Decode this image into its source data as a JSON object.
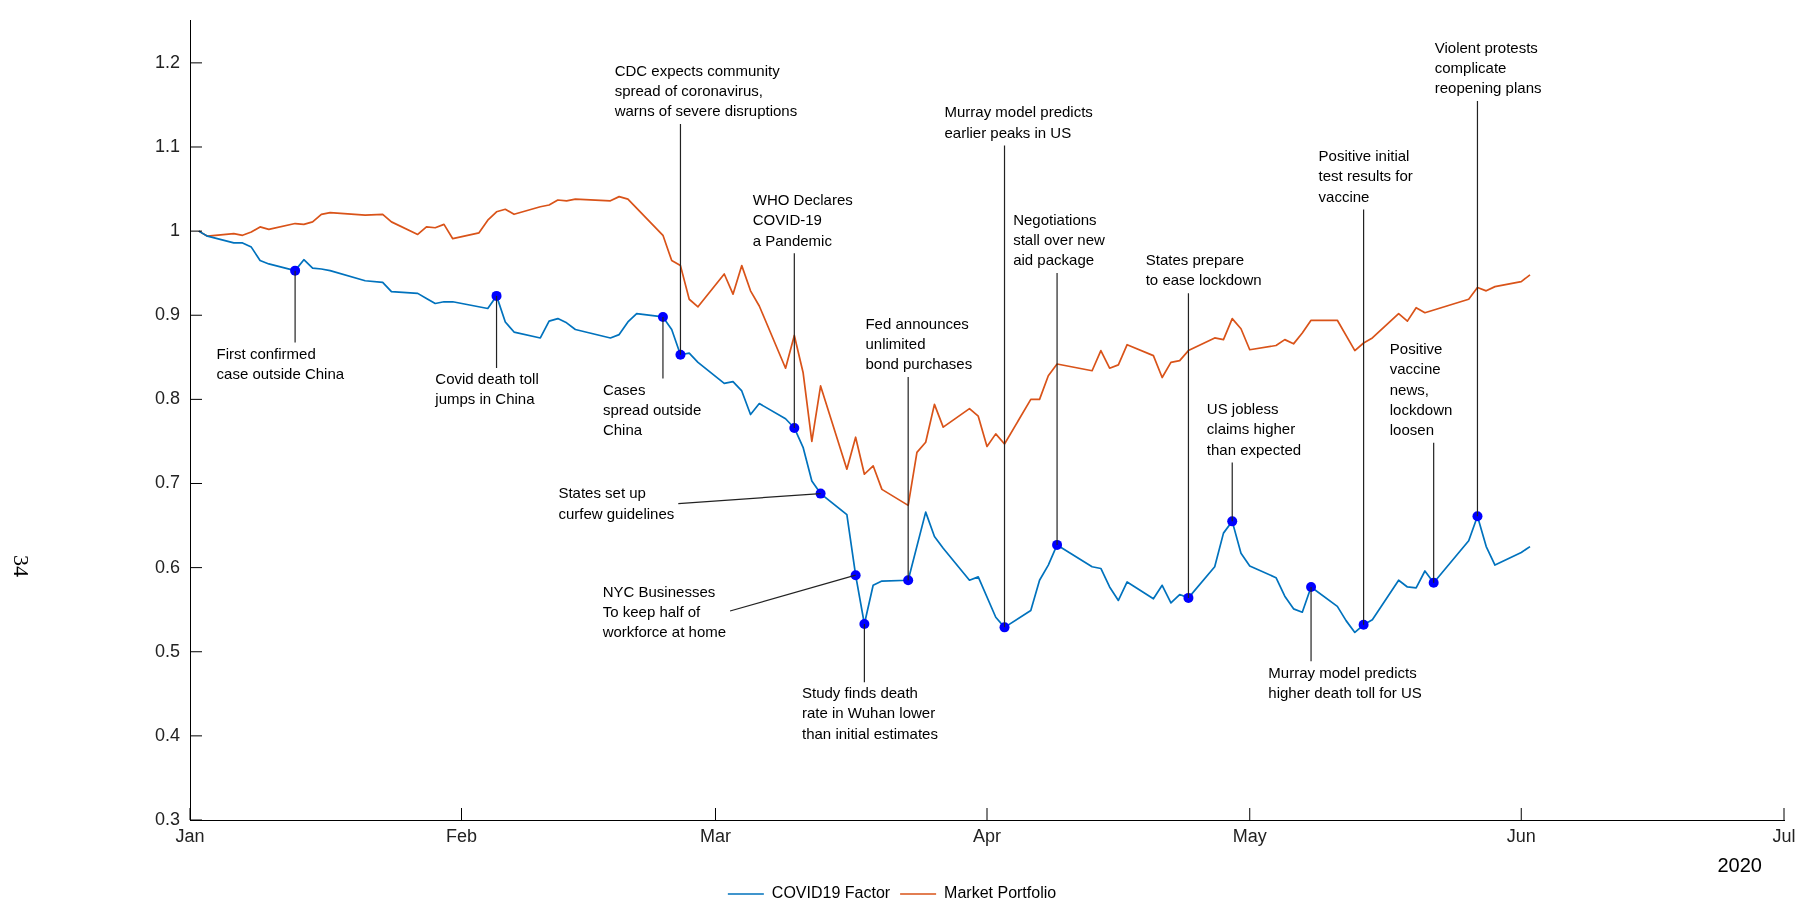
{
  "chart_data": {
    "type": "line",
    "xlim": [
      "2020-01-01",
      "2020-07-01"
    ],
    "xticks": [
      {
        "value": "2020-01-01",
        "label": "Jan"
      },
      {
        "value": "2020-02-01",
        "label": "Feb"
      },
      {
        "value": "2020-03-01",
        "label": "Mar"
      },
      {
        "value": "2020-04-01",
        "label": "Apr"
      },
      {
        "value": "2020-05-01",
        "label": "May"
      },
      {
        "value": "2020-06-01",
        "label": "Jun"
      },
      {
        "value": "2020-07-01",
        "label": "Jul"
      }
    ],
    "ylim": [
      0.3,
      1.25
    ],
    "yticks": [
      0.3,
      0.4,
      0.5,
      0.6,
      0.7,
      0.8,
      0.9,
      1,
      1.1,
      1.2
    ],
    "legend": "bottom",
    "series": [
      {
        "name": "COVID19 Factor",
        "color": "#0072bd",
        "x": [
          "2020-01-02",
          "2020-01-03",
          "2020-01-06",
          "2020-01-07",
          "2020-01-08",
          "2020-01-09",
          "2020-01-10",
          "2020-01-13",
          "2020-01-14",
          "2020-01-15",
          "2020-01-16",
          "2020-01-17",
          "2020-01-21",
          "2020-01-23",
          "2020-01-24",
          "2020-01-27",
          "2020-01-28",
          "2020-01-29",
          "2020-01-30",
          "2020-01-31",
          "2020-02-04",
          "2020-02-05",
          "2020-02-06",
          "2020-02-07",
          "2020-02-10",
          "2020-02-11",
          "2020-02-12",
          "2020-02-13",
          "2020-02-14",
          "2020-02-18",
          "2020-02-19",
          "2020-02-20",
          "2020-02-21",
          "2020-02-24",
          "2020-02-25",
          "2020-02-26",
          "2020-02-27",
          "2020-02-28",
          "2020-03-02",
          "2020-03-03",
          "2020-03-04",
          "2020-03-05",
          "2020-03-06",
          "2020-03-09",
          "2020-03-10",
          "2020-03-11",
          "2020-03-12",
          "2020-03-13",
          "2020-03-16",
          "2020-03-17",
          "2020-03-18",
          "2020-03-19",
          "2020-03-20",
          "2020-03-23",
          "2020-03-25",
          "2020-03-26",
          "2020-03-27",
          "2020-03-30",
          "2020-03-31",
          "2020-04-02",
          "2020-04-03",
          "2020-04-06",
          "2020-04-07",
          "2020-04-08",
          "2020-04-09",
          "2020-04-13",
          "2020-04-14",
          "2020-04-15",
          "2020-04-16",
          "2020-04-17",
          "2020-04-20",
          "2020-04-21",
          "2020-04-22",
          "2020-04-23",
          "2020-04-24",
          "2020-04-27",
          "2020-04-28",
          "2020-04-29",
          "2020-04-30",
          "2020-05-01",
          "2020-05-04",
          "2020-05-05",
          "2020-05-06",
          "2020-05-07",
          "2020-05-08",
          "2020-05-11",
          "2020-05-12",
          "2020-05-13",
          "2020-05-14",
          "2020-05-15",
          "2020-05-18",
          "2020-05-19",
          "2020-05-20",
          "2020-05-21",
          "2020-05-22",
          "2020-05-26",
          "2020-05-27",
          "2020-05-28",
          "2020-05-29",
          "2020-06-01",
          "2020-06-02"
        ],
        "values": [
          1.0,
          0.994,
          0.986,
          0.986,
          0.981,
          0.965,
          0.961,
          0.953,
          0.966,
          0.956,
          0.955,
          0.953,
          0.941,
          0.939,
          0.928,
          0.926,
          0.92,
          0.914,
          0.916,
          0.916,
          0.908,
          0.923,
          0.892,
          0.88,
          0.873,
          0.893,
          0.896,
          0.891,
          0.883,
          0.873,
          0.877,
          0.892,
          0.902,
          0.898,
          0.883,
          0.853,
          0.855,
          0.844,
          0.819,
          0.821,
          0.81,
          0.782,
          0.795,
          0.777,
          0.766,
          0.743,
          0.703,
          0.688,
          0.663,
          0.591,
          0.533,
          0.579,
          0.584,
          0.585,
          0.666,
          0.637,
          0.623,
          0.585,
          0.589,
          0.541,
          0.529,
          0.549,
          0.585,
          0.603,
          0.627,
          0.601,
          0.599,
          0.577,
          0.561,
          0.583,
          0.563,
          0.579,
          0.558,
          0.568,
          0.564,
          0.601,
          0.641,
          0.655,
          0.617,
          0.602,
          0.588,
          0.566,
          0.551,
          0.547,
          0.577,
          0.554,
          0.537,
          0.523,
          0.532,
          0.538,
          0.585,
          0.577,
          0.576,
          0.596,
          0.582,
          0.632,
          0.661,
          0.625,
          0.603,
          0.618,
          0.625
        ]
      },
      {
        "name": "Market Portfolio",
        "color": "#d95319",
        "x": [
          "2020-01-02",
          "2020-01-03",
          "2020-01-06",
          "2020-01-07",
          "2020-01-08",
          "2020-01-09",
          "2020-01-10",
          "2020-01-13",
          "2020-01-14",
          "2020-01-15",
          "2020-01-16",
          "2020-01-17",
          "2020-01-21",
          "2020-01-23",
          "2020-01-24",
          "2020-01-27",
          "2020-01-28",
          "2020-01-29",
          "2020-01-30",
          "2020-01-31",
          "2020-02-03",
          "2020-02-04",
          "2020-02-05",
          "2020-02-06",
          "2020-02-07",
          "2020-02-10",
          "2020-02-11",
          "2020-02-12",
          "2020-02-13",
          "2020-02-14",
          "2020-02-18",
          "2020-02-19",
          "2020-02-20",
          "2020-02-24",
          "2020-02-25",
          "2020-02-26",
          "2020-02-27",
          "2020-02-28",
          "2020-03-02",
          "2020-03-03",
          "2020-03-04",
          "2020-03-05",
          "2020-03-06",
          "2020-03-09",
          "2020-03-10",
          "2020-03-11",
          "2020-03-12",
          "2020-03-13",
          "2020-03-16",
          "2020-03-17",
          "2020-03-18",
          "2020-03-19",
          "2020-03-20",
          "2020-03-23",
          "2020-03-24",
          "2020-03-25",
          "2020-03-26",
          "2020-03-27",
          "2020-03-30",
          "2020-03-31",
          "2020-04-01",
          "2020-04-02",
          "2020-04-03",
          "2020-04-06",
          "2020-04-07",
          "2020-04-08",
          "2020-04-09",
          "2020-04-13",
          "2020-04-14",
          "2020-04-15",
          "2020-04-16",
          "2020-04-17",
          "2020-04-20",
          "2020-04-21",
          "2020-04-22",
          "2020-04-23",
          "2020-04-24",
          "2020-04-27",
          "2020-04-28",
          "2020-04-29",
          "2020-04-30",
          "2020-05-01",
          "2020-05-04",
          "2020-05-05",
          "2020-05-06",
          "2020-05-07",
          "2020-05-08",
          "2020-05-11",
          "2020-05-13",
          "2020-05-14",
          "2020-05-15",
          "2020-05-18",
          "2020-05-19",
          "2020-05-20",
          "2020-05-21",
          "2020-05-26",
          "2020-05-27",
          "2020-05-28",
          "2020-05-29",
          "2020-06-01",
          "2020-06-02"
        ],
        "values": [
          1.0,
          0.994,
          0.997,
          0.995,
          0.999,
          1.005,
          1.002,
          1.009,
          1.008,
          1.011,
          1.02,
          1.022,
          1.019,
          1.02,
          1.011,
          0.996,
          1.005,
          1.004,
          1.008,
          0.991,
          0.998,
          1.013,
          1.023,
          1.026,
          1.02,
          1.029,
          1.031,
          1.037,
          1.036,
          1.038,
          1.036,
          1.041,
          1.038,
          0.995,
          0.965,
          0.959,
          0.919,
          0.91,
          0.949,
          0.925,
          0.959,
          0.929,
          0.911,
          0.837,
          0.876,
          0.832,
          0.75,
          0.816,
          0.717,
          0.755,
          0.711,
          0.721,
          0.693,
          0.674,
          0.737,
          0.749,
          0.794,
          0.767,
          0.789,
          0.78,
          0.744,
          0.759,
          0.747,
          0.8,
          0.8,
          0.828,
          0.842,
          0.834,
          0.858,
          0.837,
          0.841,
          0.865,
          0.852,
          0.826,
          0.844,
          0.846,
          0.858,
          0.873,
          0.871,
          0.896,
          0.884,
          0.859,
          0.864,
          0.871,
          0.866,
          0.879,
          0.894,
          0.894,
          0.858,
          0.867,
          0.873,
          0.902,
          0.893,
          0.909,
          0.903,
          0.919,
          0.933,
          0.929,
          0.934,
          0.94,
          0.948
        ]
      }
    ],
    "annotations": [
      "2020",
      "34",
      {
        "text": "First confirmed\ncase outside China",
        "x": "2020-01-13",
        "y": 0.953
      },
      {
        "text": "Covid death toll\njumps in China",
        "x": "2020-02-05",
        "y": 0.923
      },
      {
        "text": "Cases\nspread outside\nChina",
        "x": "2020-02-24",
        "y": 0.898
      },
      {
        "text": "CDC expects community\nspread of coronavirus,\nwarns of severe disruptions",
        "x": "2020-02-26",
        "y": 0.853
      },
      {
        "text": "WHO Declares\nCOVID-19\na Pandemic",
        "x": "2020-03-10",
        "y": 0.766
      },
      {
        "text": "States set up\ncurfew guidelines",
        "x": "2020-03-13",
        "y": 0.688
      },
      {
        "text": "NYC Businesses\nTo keep half of\nworkforce at home",
        "x": "2020-03-17",
        "y": 0.591
      },
      {
        "text": "Study finds death\nrate in Wuhan lower\nthan initial estimates",
        "x": "2020-03-18",
        "y": 0.533
      },
      {
        "text": "Fed announces\nunlimited\nbond purchases",
        "x": "2020-03-23",
        "y": 0.585
      },
      {
        "text": "Murray model predicts\nearlier peaks in US",
        "x": "2020-04-03",
        "y": 0.529
      },
      {
        "text": "Negotiations\nstall over new\naid package",
        "x": "2020-04-09",
        "y": 0.627
      },
      {
        "text": "States prepare\nto ease lockdown",
        "x": "2020-04-24",
        "y": 0.564
      },
      {
        "text": "US jobless\nclaims higher\nthan expected",
        "x": "2020-04-29",
        "y": 0.655
      },
      {
        "text": "Murray model predicts\nhigher death toll for US",
        "x": "2020-05-08",
        "y": 0.577
      },
      {
        "text": "Positive initial\ntest results for\nvaccine",
        "x": "2020-05-14",
        "y": 0.532
      },
      {
        "text": "Positive\nvaccine\nnews,\nlockdown\nloosen",
        "x": "2020-05-22",
        "y": 0.582
      },
      {
        "text": "Violent protests\ncomplicate\nreopening plans",
        "x": "2020-05-27",
        "y": 0.661
      }
    ]
  }
}
